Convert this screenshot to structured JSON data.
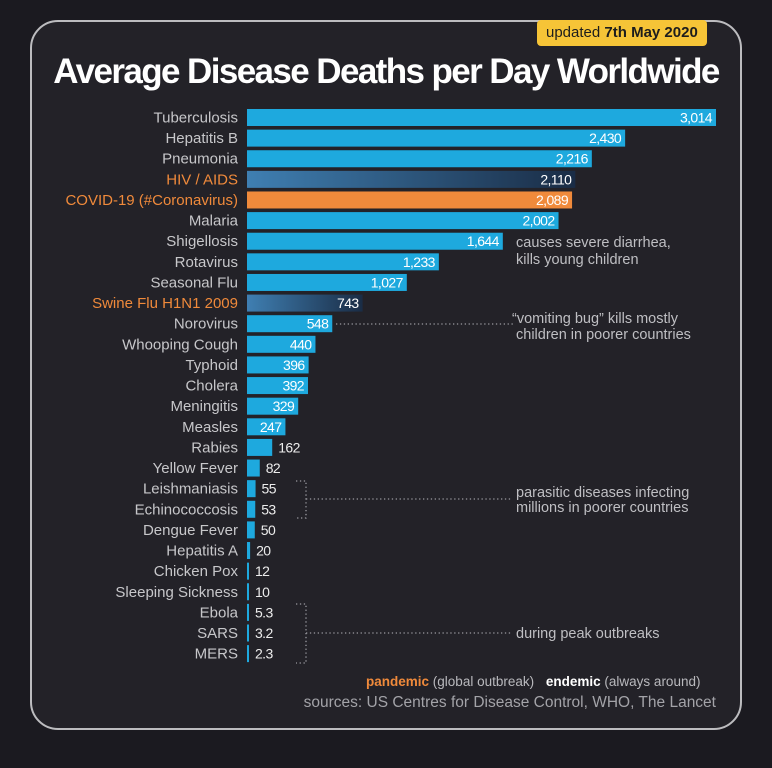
{
  "header": {
    "updated_prefix": "updated",
    "updated_date": "7th May 2020",
    "title": "Average Disease Deaths per Day Worldwide"
  },
  "chart_data": {
    "type": "bar",
    "orientation": "horizontal",
    "title": "Average Disease Deaths per Day Worldwide",
    "categories": [
      "Tuberculosis",
      "Hepatitis B",
      "Pneumonia",
      "HIV / AIDS",
      "COVID-19 (#Coronavirus)",
      "Malaria",
      "Shigellosis",
      "Rotavirus",
      "Seasonal Flu",
      "Swine Flu H1N1 2009",
      "Norovirus",
      "Whooping Cough",
      "Typhoid",
      "Cholera",
      "Meningitis",
      "Measles",
      "Rabies",
      "Yellow Fever",
      "Leishmaniasis",
      "Echinococcosis",
      "Dengue Fever",
      "Hepatitis A",
      "Chicken Pox",
      "Sleeping Sickness",
      "Ebola",
      "SARS",
      "MERS"
    ],
    "values": [
      3014,
      2430,
      2216,
      2110,
      2089,
      2002,
      1644,
      1233,
      1027,
      743,
      548,
      440,
      396,
      392,
      329,
      247,
      162,
      82,
      55,
      53,
      50,
      20,
      12,
      10,
      5.3,
      3.2,
      2.3
    ],
    "value_labels": [
      "3,014",
      "2,430",
      "2,216",
      "2,110",
      "2,089",
      "2,002",
      "1,644",
      "1,233",
      "1,027",
      "743",
      "548",
      "440",
      "396",
      "392",
      "329",
      "247",
      "162",
      "82",
      "55",
      "53",
      "50",
      "20",
      "12",
      "10",
      "5.3",
      "3.2",
      "2.3"
    ],
    "pandemic": [
      "HIV / AIDS",
      "COVID-19 (#Coronavirus)",
      "Swine Flu H1N1 2009"
    ],
    "xlim": [
      0,
      3014
    ],
    "colors": {
      "endemic": "#1ea9de",
      "pandemic_label": "#f08a3b",
      "covid_bar": "#f08a3b",
      "pandemic_bar_start": "#3f7fb2",
      "pandemic_bar_end": "#1a2c45"
    },
    "annotations": [
      {
        "text": [
          "causes severe diarrhea,",
          "kills young children"
        ]
      },
      {
        "text": [
          "“vomiting bug” kills mostly",
          "children in poorer countries"
        ]
      },
      {
        "text": [
          "parasitic diseases infecting",
          "millions in poorer countries"
        ]
      },
      {
        "text": [
          "during peak outbreaks"
        ]
      }
    ]
  },
  "legend": {
    "pandemic": "pandemic",
    "pandemic_desc": "(global outbreak)",
    "endemic": "endemic",
    "endemic_desc": "(always around)"
  },
  "sources": "sources: US Centres for Disease Control, WHO, The Lancet"
}
